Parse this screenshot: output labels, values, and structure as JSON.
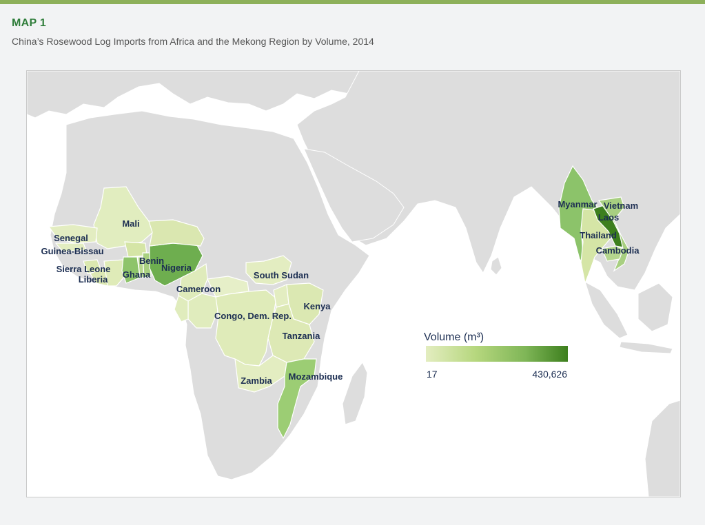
{
  "header": {
    "map_label": "MAP 1",
    "title": "China’s Rosewood Log Imports from Africa and the Mekong Region by Volume, 2014"
  },
  "legend": {
    "title": "Volume (m³)",
    "min_label": "17",
    "max_label": "430,626",
    "color_low": "#e3edc0",
    "color_high": "#3d7f1e"
  },
  "colors": {
    "water": "#ffffff",
    "land": "#dddddd",
    "border": "#ffffff",
    "accent": "#2f7d3a"
  },
  "countries": [
    {
      "name": "Mali"
    },
    {
      "name": "Senegal"
    },
    {
      "name": "Guinea-Bissau"
    },
    {
      "name": "Sierra Leone"
    },
    {
      "name": "Liberia"
    },
    {
      "name": "Ghana"
    },
    {
      "name": "Benin"
    },
    {
      "name": "Nigeria"
    },
    {
      "name": "Cameroon"
    },
    {
      "name": "South Sudan"
    },
    {
      "name": "Kenya"
    },
    {
      "name": "Congo, Dem. Rep."
    },
    {
      "name": "Tanzania"
    },
    {
      "name": "Zambia"
    },
    {
      "name": "Mozambique"
    },
    {
      "name": "Myanmar"
    },
    {
      "name": "Vietnam"
    },
    {
      "name": "Laos"
    },
    {
      "name": "Thailand"
    },
    {
      "name": "Cambodia"
    }
  ]
}
